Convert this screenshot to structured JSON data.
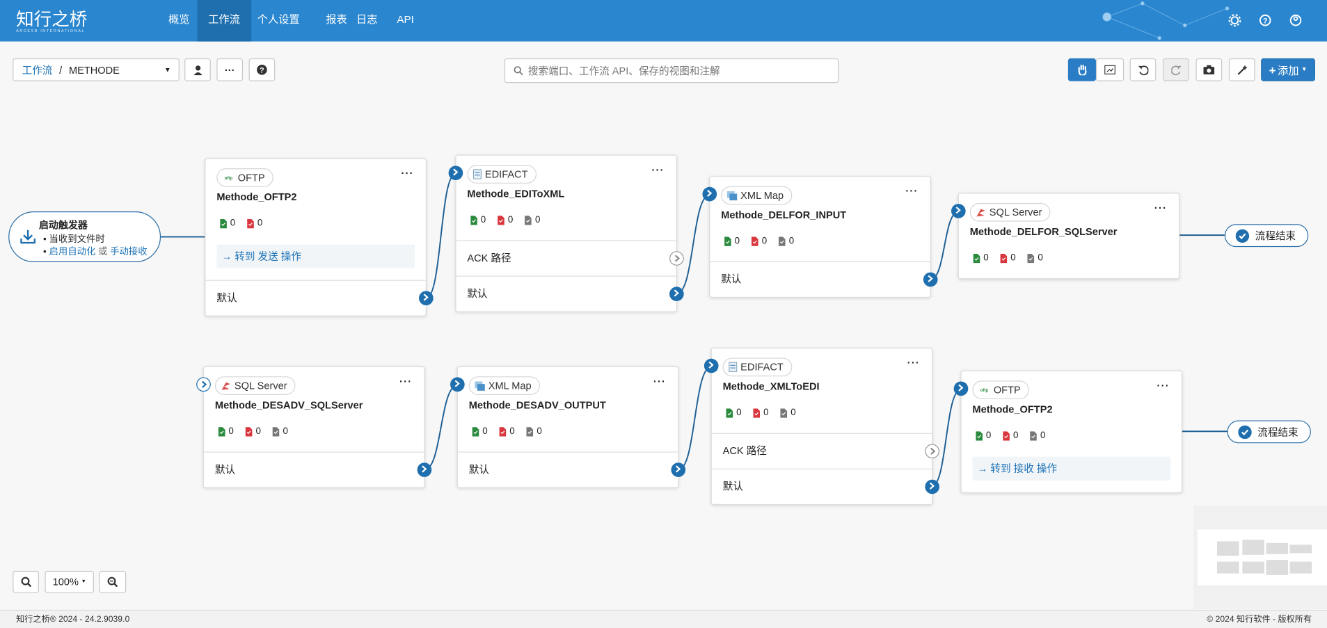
{
  "header": {
    "logo": "知行之桥",
    "logo_sub": "ARCESB INTERNATIONAL",
    "nav": [
      "概览",
      "工作流",
      "个人设置",
      "报表",
      "日志",
      "API"
    ]
  },
  "toolbar": {
    "breadcrumb_root": "工作流",
    "breadcrumb_separator": "/",
    "workflow": "METHODE",
    "search_placeholder": "搜索端口、工作流 API、保存的视图和注解",
    "add_button": "添加"
  },
  "trigger": {
    "title": "启动触发器",
    "item": "当收到文件时",
    "auto_link": "启用自动化",
    "or": "或",
    "manual_link": "手动接收"
  },
  "nodes": [
    {
      "type": "OFTP",
      "name": "Methode_OFTP2",
      "counts": [
        0,
        0
      ],
      "link": "→ 转到 发送 操作",
      "sections": [
        "默认"
      ]
    },
    {
      "type": "EDIFACT",
      "name": "Methode_EDIToXML",
      "counts": [
        0,
        0,
        0
      ],
      "sections": [
        "ACK 路径",
        "默认"
      ]
    },
    {
      "type": "XML Map",
      "name": "Methode_DELFOR_INPUT",
      "counts": [
        0,
        0,
        0
      ],
      "sections": [
        "默认"
      ]
    },
    {
      "type": "SQL Server",
      "name": "Methode_DELFOR_SQLServer",
      "counts": [
        0,
        0,
        0
      ],
      "sections": []
    },
    {
      "type": "SQL Server",
      "name": "Methode_DESADV_SQLServer",
      "counts": [
        0,
        0,
        0
      ],
      "sections": [
        "默认"
      ]
    },
    {
      "type": "XML Map",
      "name": "Methode_DESADV_OUTPUT",
      "counts": [
        0,
        0,
        0
      ],
      "sections": [
        "默认"
      ]
    },
    {
      "type": "EDIFACT",
      "name": "Methode_XMLToEDI",
      "counts": [
        0,
        0,
        0
      ],
      "sections": [
        "ACK 路径",
        "默认"
      ]
    },
    {
      "type": "OFTP",
      "name": "Methode_OFTP2",
      "counts": [
        0,
        0,
        0
      ],
      "link": "→ 转到 接收 操作",
      "sections": []
    }
  ],
  "ends": [
    "流程结束",
    "流程结束"
  ],
  "zoom": "100%",
  "footer": {
    "left": "知行之桥® 2024 - 24.2.9039.0",
    "right": "© 2024 知行软件 - 版权所有"
  }
}
